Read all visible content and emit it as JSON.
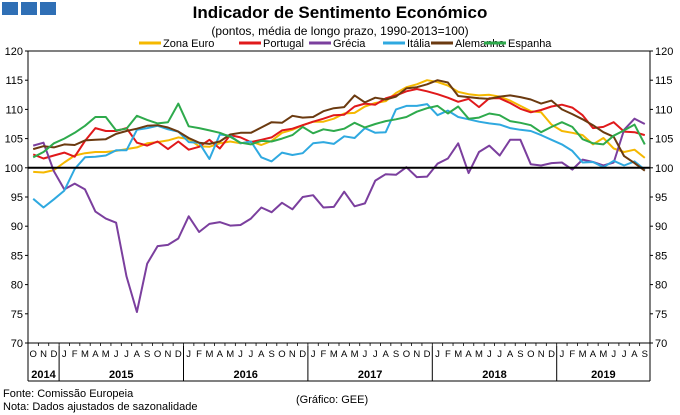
{
  "header": {
    "title": "Indicador de Sentimento Económico",
    "subtitle": "(pontos, média de longo prazo, 1990-2013=100)"
  },
  "footer": {
    "source": "Fonte: Comissão Europeia",
    "note": "Nota: Dados ajustados de sazonalidade",
    "credit": "(Gráfico: GEE)"
  },
  "chart_data": {
    "type": "line",
    "title": "Indicador de Sentimento Económico",
    "subtitle": "(pontos, média de longo prazo, 1990-2013=100)",
    "ylim": [
      70,
      120
    ],
    "yticks": [
      70,
      75,
      80,
      85,
      90,
      95,
      100,
      105,
      110,
      115,
      120
    ],
    "reference_line": 100,
    "legend_position": "top",
    "x": [
      "2014-10",
      "2014-11",
      "2014-12",
      "2015-01",
      "2015-02",
      "2015-03",
      "2015-04",
      "2015-05",
      "2015-06",
      "2015-07",
      "2015-08",
      "2015-09",
      "2015-10",
      "2015-11",
      "2015-12",
      "2016-01",
      "2016-02",
      "2016-03",
      "2016-04",
      "2016-05",
      "2016-06",
      "2016-07",
      "2016-08",
      "2016-09",
      "2016-10",
      "2016-11",
      "2016-12",
      "2017-01",
      "2017-02",
      "2017-03",
      "2017-04",
      "2017-05",
      "2017-06",
      "2017-07",
      "2017-08",
      "2017-09",
      "2017-10",
      "2017-11",
      "2017-12",
      "2018-01",
      "2018-02",
      "2018-03",
      "2018-04",
      "2018-05",
      "2018-06",
      "2018-07",
      "2018-08",
      "2018-09",
      "2018-10",
      "2018-11",
      "2018-12",
      "2019-01",
      "2019-02",
      "2019-03",
      "2019-04",
      "2019-05",
      "2019-06",
      "2019-07",
      "2019-08",
      "2019-09"
    ],
    "month_labels": [
      "O",
      "N",
      "D",
      "J",
      "F",
      "M",
      "A",
      "M",
      "J",
      "J",
      "A",
      "S",
      "O",
      "N",
      "D",
      "J",
      "F",
      "M",
      "A",
      "M",
      "J",
      "J",
      "A",
      "S",
      "O",
      "N",
      "D",
      "J",
      "F",
      "M",
      "A",
      "M",
      "J",
      "J",
      "A",
      "S",
      "O",
      "N",
      "D",
      "J",
      "F",
      "M",
      "A",
      "M",
      "J",
      "J",
      "A",
      "S",
      "O",
      "N",
      "D",
      "J",
      "F",
      "M",
      "A",
      "M",
      "J",
      "J",
      "A",
      "S"
    ],
    "year_labels": [
      {
        "label": "2014",
        "start": 0,
        "end": 2
      },
      {
        "label": "2015",
        "start": 3,
        "end": 14
      },
      {
        "label": "2016",
        "start": 15,
        "end": 26
      },
      {
        "label": "2017",
        "start": 27,
        "end": 38
      },
      {
        "label": "2018",
        "start": 39,
        "end": 50
      },
      {
        "label": "2019",
        "start": 51,
        "end": 59
      }
    ],
    "series": [
      {
        "name": "Zona Euro",
        "color": "#f5b800",
        "values": [
          99.3,
          99.2,
          99.6,
          100.9,
          102.1,
          102.5,
          102.7,
          102.7,
          102.9,
          103.2,
          103.5,
          104.2,
          104.4,
          104.7,
          105.2,
          104.9,
          103.7,
          103.6,
          104.2,
          104.5,
          104.2,
          104.5,
          103.9,
          104.6,
          106.0,
          106.5,
          107.3,
          107.9,
          107.9,
          108.4,
          109.3,
          109.4,
          110.5,
          111.1,
          111.4,
          112.8,
          113.8,
          114.3,
          115.0,
          114.7,
          114.1,
          113.0,
          112.6,
          112.4,
          112.5,
          112.2,
          111.5,
          110.6,
          109.7,
          109.5,
          107.4,
          106.3,
          106.0,
          105.6,
          104.0,
          105.1,
          103.3,
          102.7,
          103.1,
          101.7
        ]
      },
      {
        "name": "Portugal",
        "color": "#e0191b",
        "values": [
          102.3,
          101.6,
          102.1,
          102.6,
          101.9,
          104.6,
          106.8,
          106.3,
          106.3,
          106.8,
          104.3,
          103.8,
          104.5,
          103.2,
          104.5,
          103.1,
          103.6,
          104.8,
          103.3,
          105.6,
          105.2,
          104.4,
          104.8,
          105.2,
          106.4,
          106.7,
          107.3,
          107.9,
          108.4,
          109.0,
          109.1,
          110.5,
          111.0,
          110.8,
          111.9,
          112.4,
          113.1,
          113.5,
          113.1,
          112.6,
          112.0,
          111.3,
          111.8,
          110.4,
          111.9,
          111.9,
          111.1,
          110.1,
          109.5,
          109.9,
          110.5,
          110.8,
          110.3,
          109.0,
          106.8,
          107.0,
          107.8,
          106.2,
          106.1,
          105.6
        ]
      },
      {
        "name": "Grécia",
        "color": "#7b3f9e",
        "values": [
          103.8,
          104.3,
          99.4,
          96.3,
          97.3,
          96.3,
          92.5,
          91.3,
          90.6,
          81.4,
          75.3,
          83.6,
          86.6,
          86.8,
          87.9,
          91.7,
          89.0,
          90.4,
          90.7,
          90.1,
          90.2,
          91.3,
          93.2,
          92.4,
          94.0,
          92.9,
          95.0,
          95.3,
          93.2,
          93.3,
          95.9,
          93.4,
          93.9,
          97.8,
          98.9,
          98.8,
          100.1,
          98.4,
          98.5,
          100.7,
          101.6,
          104.2,
          99.1,
          102.7,
          103.8,
          102.1,
          104.8,
          104.8,
          100.6,
          100.4,
          100.8,
          100.9,
          99.7,
          101.4,
          101.0,
          100.4,
          100.9,
          106.5,
          108.4,
          107.5
        ]
      },
      {
        "name": "Itália",
        "color": "#2fa9e0",
        "values": [
          94.7,
          93.2,
          94.6,
          96.1,
          99.8,
          101.8,
          101.9,
          102.1,
          103.0,
          103.0,
          106.5,
          106.8,
          107.2,
          106.6,
          106.2,
          104.4,
          104.3,
          101.5,
          105.7,
          105.5,
          104.2,
          104.5,
          101.8,
          101.1,
          102.6,
          102.2,
          102.5,
          104.2,
          104.4,
          104.1,
          105.4,
          105.1,
          106.8,
          106.0,
          106.1,
          110.0,
          110.6,
          110.6,
          110.9,
          109.0,
          109.8,
          108.7,
          108.3,
          107.9,
          107.6,
          107.4,
          106.8,
          106.5,
          106.3,
          105.6,
          104.8,
          104.0,
          102.9,
          100.9,
          101.0,
          100.1,
          101.2,
          100.4,
          101.1,
          99.7
        ]
      },
      {
        "name": "Alemanha",
        "color": "#6b3a10",
        "values": [
          103.2,
          103.7,
          103.5,
          104.0,
          103.9,
          104.7,
          104.8,
          104.9,
          105.8,
          106.3,
          106.7,
          107.2,
          107.3,
          106.9,
          106.2,
          105.1,
          104.3,
          104.1,
          104.5,
          105.7,
          106.0,
          106.0,
          106.9,
          107.8,
          107.7,
          108.9,
          108.6,
          108.7,
          109.7,
          110.2,
          110.4,
          112.4,
          111.2,
          112.0,
          111.7,
          112.2,
          113.6,
          113.8,
          114.3,
          115.0,
          114.6,
          112.3,
          112.1,
          111.9,
          111.8,
          112.2,
          112.4,
          112.1,
          111.7,
          111.0,
          111.5,
          110.0,
          109.2,
          108.3,
          107.3,
          106.1,
          105.3,
          102.0,
          100.8,
          99.5
        ]
      },
      {
        "name": "Espanha",
        "color": "#2eaa4c",
        "values": [
          101.8,
          102.7,
          104.2,
          105.0,
          106.0,
          107.2,
          108.7,
          108.7,
          106.4,
          106.7,
          108.9,
          108.2,
          107.6,
          107.8,
          111.0,
          107.1,
          106.8,
          106.4,
          106.0,
          105.3,
          104.3,
          104.0,
          104.6,
          104.5,
          105.0,
          105.6,
          107.0,
          105.9,
          106.6,
          106.3,
          106.7,
          107.7,
          106.9,
          107.5,
          108.0,
          108.3,
          108.7,
          109.6,
          110.2,
          110.6,
          109.3,
          110.5,
          108.4,
          108.6,
          109.3,
          109.0,
          108.0,
          107.7,
          107.3,
          106.1,
          107.0,
          107.8,
          107.0,
          104.9,
          104.2,
          104.0,
          105.5,
          106.4,
          107.4,
          104.0
        ]
      }
    ]
  }
}
